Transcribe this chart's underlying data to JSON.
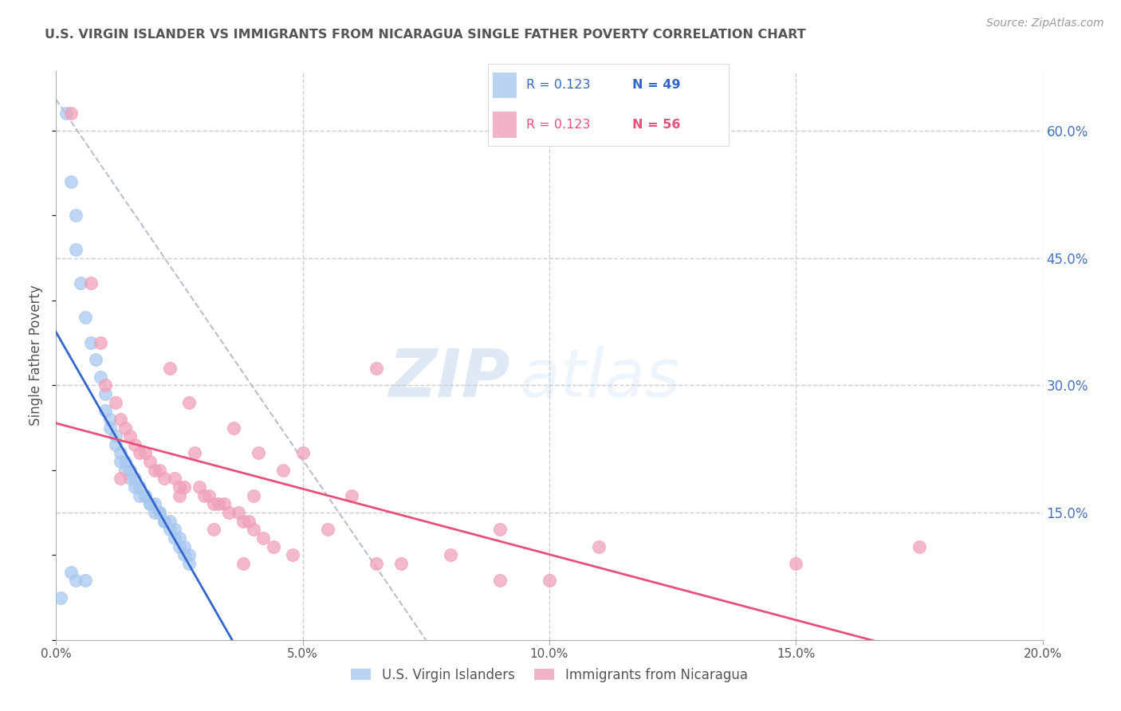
{
  "title": "U.S. VIRGIN ISLANDER VS IMMIGRANTS FROM NICARAGUA SINGLE FATHER POVERTY CORRELATION CHART",
  "source": "Source: ZipAtlas.com",
  "ylabel": "Single Father Poverty",
  "xlim": [
    0.0,
    0.2
  ],
  "ylim": [
    0.0,
    0.67
  ],
  "xtick_labels": [
    "0.0%",
    "5.0%",
    "10.0%",
    "15.0%",
    "20.0%"
  ],
  "xtick_vals": [
    0.0,
    0.05,
    0.1,
    0.15,
    0.2
  ],
  "ytick_labels_right": [
    "15.0%",
    "30.0%",
    "45.0%",
    "60.0%"
  ],
  "ytick_vals_right": [
    0.15,
    0.3,
    0.45,
    0.6
  ],
  "legend_label_blue": "U.S. Virgin Islanders",
  "legend_label_pink": "Immigrants from Nicaragua",
  "blue_color": "#a8c8f0",
  "pink_color": "#f0a0b8",
  "blue_line_color": "#3366cc",
  "pink_line_color": "#e8507a",
  "blue_R": "0.123",
  "blue_N": "49",
  "pink_R": "0.123",
  "pink_N": "56",
  "watermark_zip": "ZIP",
  "watermark_atlas": "atlas",
  "blue_scatter_x": [
    0.002,
    0.003,
    0.004,
    0.004,
    0.005,
    0.006,
    0.007,
    0.008,
    0.009,
    0.01,
    0.01,
    0.011,
    0.011,
    0.012,
    0.012,
    0.013,
    0.013,
    0.014,
    0.014,
    0.015,
    0.015,
    0.016,
    0.016,
    0.017,
    0.017,
    0.018,
    0.018,
    0.019,
    0.019,
    0.02,
    0.02,
    0.021,
    0.021,
    0.022,
    0.022,
    0.023,
    0.023,
    0.024,
    0.024,
    0.025,
    0.025,
    0.026,
    0.026,
    0.027,
    0.027,
    0.003,
    0.004,
    0.006,
    0.001
  ],
  "blue_scatter_y": [
    0.62,
    0.54,
    0.5,
    0.46,
    0.42,
    0.38,
    0.35,
    0.33,
    0.31,
    0.29,
    0.27,
    0.26,
    0.25,
    0.24,
    0.23,
    0.22,
    0.21,
    0.21,
    0.2,
    0.2,
    0.19,
    0.19,
    0.18,
    0.18,
    0.17,
    0.17,
    0.17,
    0.16,
    0.16,
    0.16,
    0.15,
    0.15,
    0.15,
    0.14,
    0.14,
    0.14,
    0.13,
    0.13,
    0.12,
    0.12,
    0.11,
    0.11,
    0.1,
    0.1,
    0.09,
    0.08,
    0.07,
    0.07,
    0.05
  ],
  "pink_scatter_x": [
    0.003,
    0.007,
    0.009,
    0.01,
    0.012,
    0.013,
    0.014,
    0.015,
    0.016,
    0.017,
    0.018,
    0.019,
    0.02,
    0.021,
    0.022,
    0.023,
    0.024,
    0.025,
    0.026,
    0.027,
    0.028,
    0.029,
    0.03,
    0.031,
    0.032,
    0.033,
    0.034,
    0.035,
    0.036,
    0.037,
    0.038,
    0.039,
    0.04,
    0.041,
    0.042,
    0.044,
    0.046,
    0.048,
    0.05,
    0.055,
    0.06,
    0.065,
    0.07,
    0.08,
    0.09,
    0.1,
    0.11,
    0.15,
    0.175,
    0.013,
    0.025,
    0.032,
    0.038,
    0.065,
    0.09,
    0.04
  ],
  "pink_scatter_y": [
    0.62,
    0.42,
    0.35,
    0.3,
    0.28,
    0.26,
    0.25,
    0.24,
    0.23,
    0.22,
    0.22,
    0.21,
    0.2,
    0.2,
    0.19,
    0.32,
    0.19,
    0.18,
    0.18,
    0.28,
    0.22,
    0.18,
    0.17,
    0.17,
    0.16,
    0.16,
    0.16,
    0.15,
    0.25,
    0.15,
    0.14,
    0.14,
    0.13,
    0.22,
    0.12,
    0.11,
    0.2,
    0.1,
    0.22,
    0.13,
    0.17,
    0.32,
    0.09,
    0.1,
    0.07,
    0.07,
    0.11,
    0.09,
    0.11,
    0.19,
    0.17,
    0.13,
    0.09,
    0.09,
    0.13,
    0.17
  ],
  "background_color": "#ffffff",
  "grid_color": "#cccccc",
  "title_color": "#555555",
  "axis_label_color": "#555555",
  "right_tick_color": "#4472c4",
  "bottom_tick_color": "#555555"
}
